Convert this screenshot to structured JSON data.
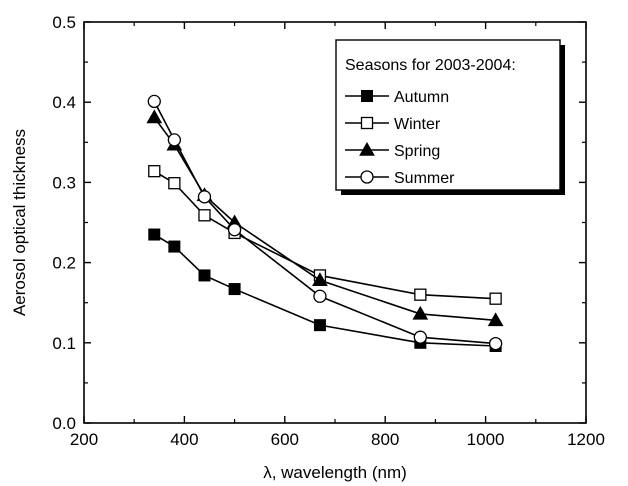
{
  "chart_data": {
    "type": "line",
    "xlabel": "λ, wavelength (nm)",
    "ylabel": "Aerosol optical thickness",
    "xlim": [
      200,
      1200
    ],
    "ylim": [
      0.0,
      0.5
    ],
    "xticks": [
      200,
      400,
      600,
      800,
      1000,
      1200
    ],
    "yticks": [
      0.0,
      0.1,
      0.2,
      0.3,
      0.4,
      0.5
    ],
    "xtick_labels": [
      "200",
      "400",
      "600",
      "800",
      "1000",
      "1200"
    ],
    "ytick_labels": [
      "0.0",
      "0.1",
      "0.2",
      "0.3",
      "0.4",
      "0.5"
    ],
    "grid": false,
    "legend": {
      "title": "Seasons for 2003-2004:",
      "placement": "top-right"
    },
    "series": [
      {
        "name": "Autumn",
        "marker": "filled-square",
        "x": [
          340,
          380,
          440,
          500,
          670,
          870,
          1020
        ],
        "y": [
          0.235,
          0.22,
          0.184,
          0.167,
          0.122,
          0.1,
          0.096
        ]
      },
      {
        "name": "Winter",
        "marker": "open-square",
        "x": [
          340,
          380,
          440,
          500,
          670,
          870,
          1020
        ],
        "y": [
          0.314,
          0.299,
          0.259,
          0.237,
          0.184,
          0.16,
          0.155
        ]
      },
      {
        "name": "Spring",
        "marker": "filled-triangle",
        "x": [
          340,
          380,
          440,
          500,
          670,
          870,
          1020
        ],
        "y": [
          0.381,
          0.347,
          0.284,
          0.25,
          0.178,
          0.136,
          0.128
        ]
      },
      {
        "name": "Summer",
        "marker": "open-circle",
        "x": [
          340,
          380,
          440,
          500,
          670,
          870,
          1020
        ],
        "y": [
          0.401,
          0.353,
          0.282,
          0.241,
          0.158,
          0.107,
          0.099
        ]
      }
    ]
  }
}
